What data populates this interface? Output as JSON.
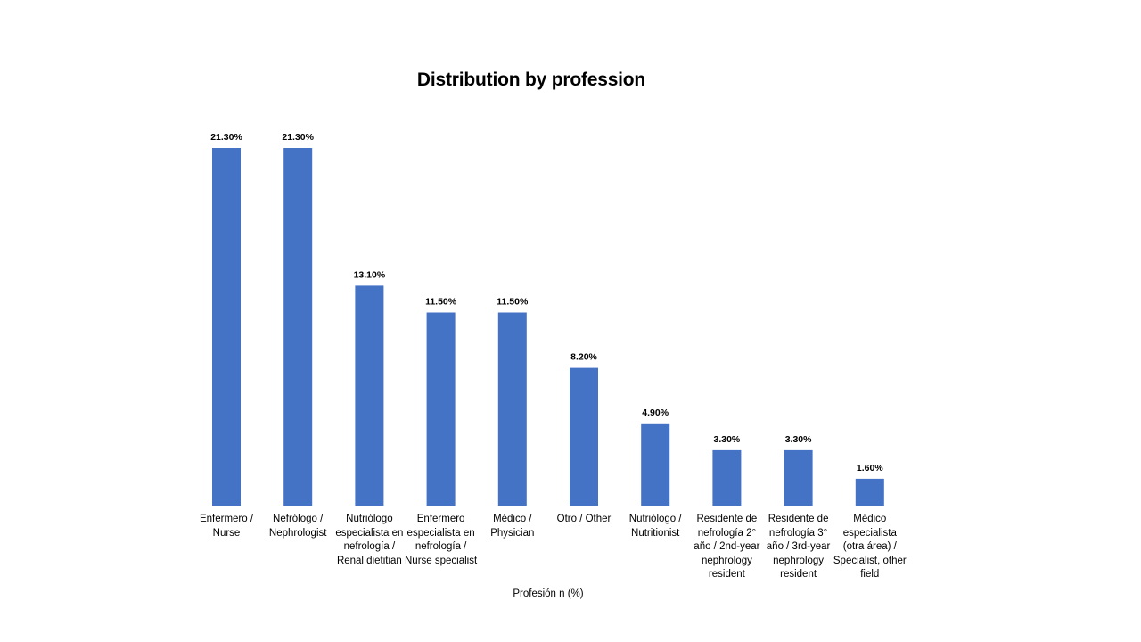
{
  "chart_data": {
    "type": "bar",
    "title": "Distribution by profession",
    "xlabel": "Profesión n (%)",
    "ylabel": "",
    "categories": [
      "Enfermero / Nurse",
      "Nefrólogo / Nephrologist",
      "Nutriólogo especialista en nefrología / Renal dietitian",
      "Enfermero especialista en nefrología / Nurse specialist",
      "Médico / Physician",
      "Otro / Other",
      "Nutriólogo / Nutritionist",
      "Residente de nefrología 2° año / 2nd-year nephrology resident",
      "Residente de nefrología 3° año / 3rd-year nephrology resident",
      "Médico especialista (otra área) / Specialist, other field"
    ],
    "values": [
      21.3,
      21.3,
      13.1,
      11.5,
      11.5,
      8.2,
      4.9,
      3.3,
      3.3,
      1.6
    ],
    "data_labels": [
      "21.30%",
      "21.30%",
      "13.10%",
      "11.50%",
      "11.50%",
      "8.20%",
      "4.90%",
      "3.30%",
      "3.30%",
      "1.60%"
    ],
    "ylim": [
      0,
      21.3
    ],
    "grid": false,
    "legend": "none",
    "bar_color": "#4472C4"
  }
}
